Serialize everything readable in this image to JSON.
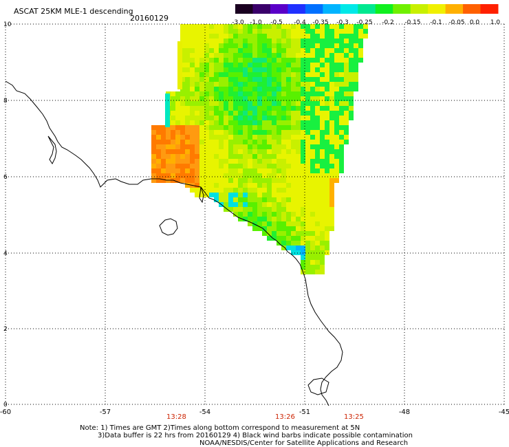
{
  "header": {
    "title": "ASCAT 25KM MLE-1 descending",
    "date": "20160129"
  },
  "colorbar": {
    "labels": [
      "-3.0",
      "-1.0",
      "-0.5",
      "-0.4",
      "-0.35",
      "-0.3",
      "-0.25",
      "-0.2",
      "-0.15",
      "-0.1",
      "-0.05",
      "0.0",
      "1.0"
    ],
    "colors": [
      "#1a0020",
      "#3a006a",
      "#5a00c8",
      "#2030ff",
      "#0070ff",
      "#00b4ff",
      "#00e8e8",
      "#00e890",
      "#10f020",
      "#70f000",
      "#c8f000",
      "#f0f000",
      "#ffb000",
      "#ff6000",
      "#ff2000"
    ]
  },
  "axes": {
    "x_ticks": [
      "-60",
      "-57",
      "-54",
      "-51",
      "-48",
      "-45"
    ],
    "y_ticks": [
      "0",
      "2",
      "4",
      "6",
      "8",
      "10"
    ]
  },
  "times": [
    "13:28",
    "13:26",
    "13:25"
  ],
  "notes": {
    "line1": "Note: 1) Times are GMT 2)Times along bottom correspond to measurement at 5N",
    "line2": "3)Data buffer is 22 hrs from 20160129 4) Black wind barbs indicate possible contamination",
    "line3": "NOAA/NESDIS/Center for Satellite Applications and Research"
  }
}
